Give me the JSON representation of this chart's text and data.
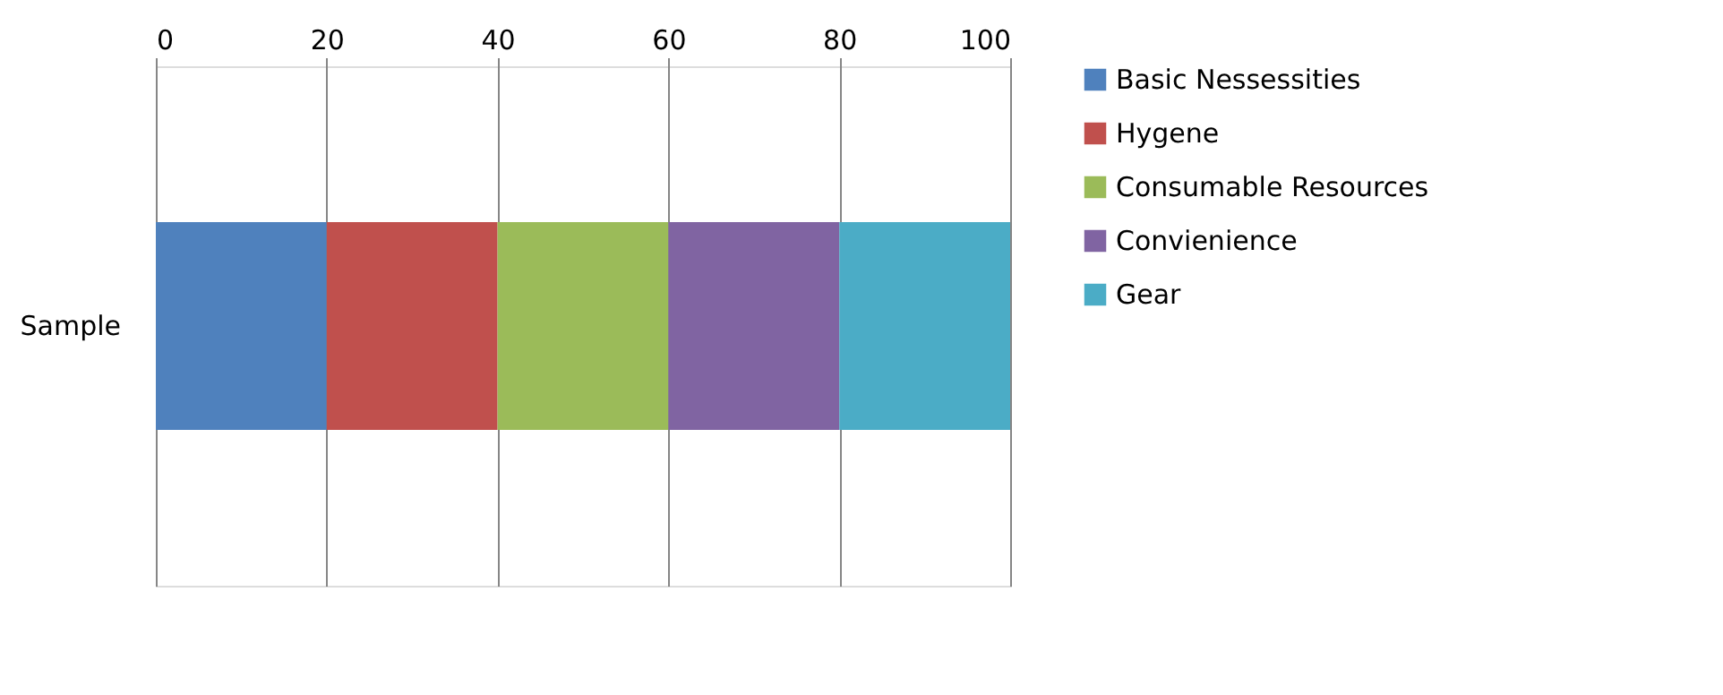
{
  "chart_data": {
    "type": "bar",
    "orientation": "horizontal",
    "stacked": true,
    "categories": [
      "Sample"
    ],
    "series": [
      {
        "name": "Basic Nessessities",
        "color": "#4f81bd",
        "values": [
          20
        ]
      },
      {
        "name": "Hygene",
        "color": "#c0504d",
        "values": [
          20
        ]
      },
      {
        "name": "Consumable Resources",
        "color": "#9bbb59",
        "values": [
          20
        ]
      },
      {
        "name": "Convienience",
        "color": "#8064a2",
        "values": [
          20
        ]
      },
      {
        "name": "Gear",
        "color": "#4bacc6",
        "values": [
          20
        ]
      }
    ],
    "xlim": [
      0,
      100
    ],
    "xticks": [
      0,
      20,
      40,
      60,
      80,
      100
    ],
    "grid": "x",
    "legend": "right"
  }
}
